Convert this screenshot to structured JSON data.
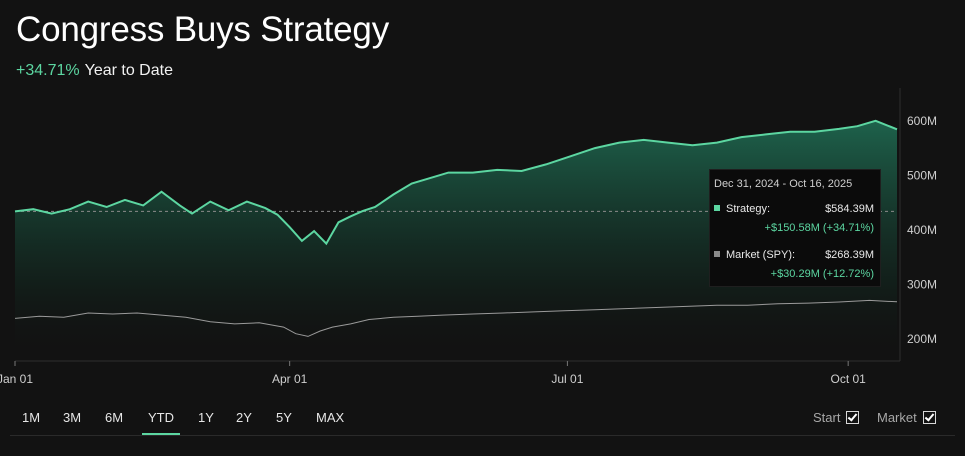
{
  "header": {
    "title": "Congress Buys Strategy",
    "ytd_change": "+34.71%",
    "ytd_label": "Year to Date"
  },
  "tooltip": {
    "date_range": "Dec 31, 2024 - Oct 16, 2025",
    "strategy_label": "Strategy:",
    "strategy_value": "$584.39M",
    "strategy_change": "+$150.58M (+34.71%)",
    "market_label": "Market (SPY):",
    "market_value": "$268.39M",
    "market_change": "+$30.29M (+12.72%)"
  },
  "range_tabs": [
    {
      "label": "1M"
    },
    {
      "label": "3M"
    },
    {
      "label": "6M"
    },
    {
      "label": "YTD",
      "active": true
    },
    {
      "label": "1Y"
    },
    {
      "label": "2Y"
    },
    {
      "label": "5Y"
    },
    {
      "label": "MAX"
    }
  ],
  "toggles": {
    "start_label": "Start",
    "market_label": "Market"
  },
  "colors": {
    "strategy": "#5cd6a1",
    "market": "#9a9a9a",
    "background": "#121212"
  },
  "chart_data": {
    "type": "area",
    "ylim": [
      160,
      660
    ],
    "yticks": [
      200,
      300,
      400,
      500,
      600
    ],
    "ytick_labels": [
      "200M",
      "300M",
      "400M",
      "500M",
      "600M"
    ],
    "xlim": [
      0,
      289
    ],
    "xticks": [
      {
        "x": 0,
        "label": "Jan 01"
      },
      {
        "x": 90,
        "label": "Apr 01"
      },
      {
        "x": 181,
        "label": "Jul 01"
      },
      {
        "x": 273,
        "label": "Oct 01"
      }
    ],
    "start_value": 434,
    "series": [
      {
        "name": "Strategy",
        "x": [
          0,
          6,
          12,
          18,
          24,
          30,
          36,
          42,
          48,
          54,
          58,
          64,
          70,
          76,
          82,
          86,
          90,
          94,
          98,
          102,
          106,
          110,
          114,
          118,
          124,
          130,
          136,
          142,
          150,
          158,
          166,
          174,
          182,
          190,
          198,
          206,
          214,
          222,
          230,
          238,
          246,
          254,
          262,
          270,
          276,
          282,
          289
        ],
        "values": [
          434,
          438,
          430,
          438,
          452,
          442,
          455,
          445,
          470,
          445,
          430,
          452,
          436,
          452,
          440,
          428,
          405,
          380,
          398,
          375,
          414,
          425,
          435,
          442,
          465,
          485,
          495,
          505,
          505,
          510,
          508,
          520,
          535,
          550,
          560,
          565,
          560,
          555,
          560,
          570,
          575,
          580,
          580,
          585,
          590,
          600,
          584.39
        ]
      },
      {
        "name": "Market (SPY)",
        "x": [
          0,
          8,
          16,
          24,
          32,
          40,
          48,
          56,
          64,
          72,
          80,
          88,
          92,
          96,
          100,
          104,
          110,
          116,
          124,
          132,
          140,
          150,
          160,
          170,
          180,
          190,
          200,
          210,
          220,
          230,
          240,
          250,
          260,
          270,
          280,
          289
        ],
        "values": [
          238,
          242,
          240,
          248,
          246,
          248,
          244,
          240,
          232,
          228,
          230,
          222,
          210,
          205,
          215,
          222,
          228,
          236,
          240,
          242,
          244,
          246,
          248,
          250,
          252,
          254,
          256,
          258,
          260,
          262,
          262,
          265,
          266,
          268,
          271,
          268.39
        ]
      }
    ]
  }
}
